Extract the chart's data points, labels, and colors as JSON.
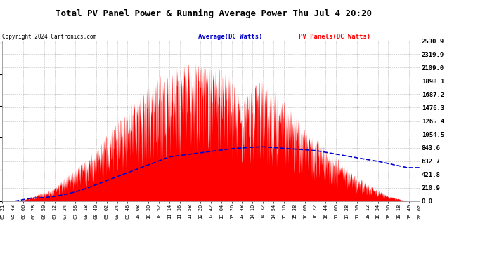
{
  "title": "Total PV Panel Power & Running Average Power Thu Jul 4 20:20",
  "copyright": "Copyright 2024 Cartronics.com",
  "legend_avg": "Average(DC Watts)",
  "legend_pv": "PV Panels(DC Watts)",
  "ylabel_right_values": [
    2530.9,
    2319.9,
    2109.0,
    1898.1,
    1687.2,
    1476.3,
    1265.4,
    1054.5,
    843.6,
    632.7,
    421.8,
    210.9,
    0.0
  ],
  "ymax": 2530.9,
  "ymin": 0.0,
  "bg_color": "#ffffff",
  "plot_bg_color": "#ffffff",
  "grid_color": "#aaaaaa",
  "fill_color": "#ff0000",
  "avg_line_color": "#0000cc",
  "title_color": "#000000",
  "copyright_color": "#000000",
  "tick_label_color": "#000000",
  "x_labels": [
    "05:21",
    "05:43",
    "06:06",
    "06:28",
    "06:50",
    "07:12",
    "07:34",
    "07:56",
    "08:18",
    "08:40",
    "09:02",
    "09:24",
    "09:46",
    "10:08",
    "10:30",
    "10:52",
    "11:14",
    "11:36",
    "11:58",
    "12:20",
    "12:42",
    "13:04",
    "13:26",
    "13:48",
    "14:10",
    "14:32",
    "14:54",
    "15:16",
    "15:38",
    "16:00",
    "16:22",
    "16:44",
    "17:06",
    "17:28",
    "17:50",
    "18:12",
    "18:34",
    "18:56",
    "19:18",
    "19:40",
    "20:02"
  ]
}
